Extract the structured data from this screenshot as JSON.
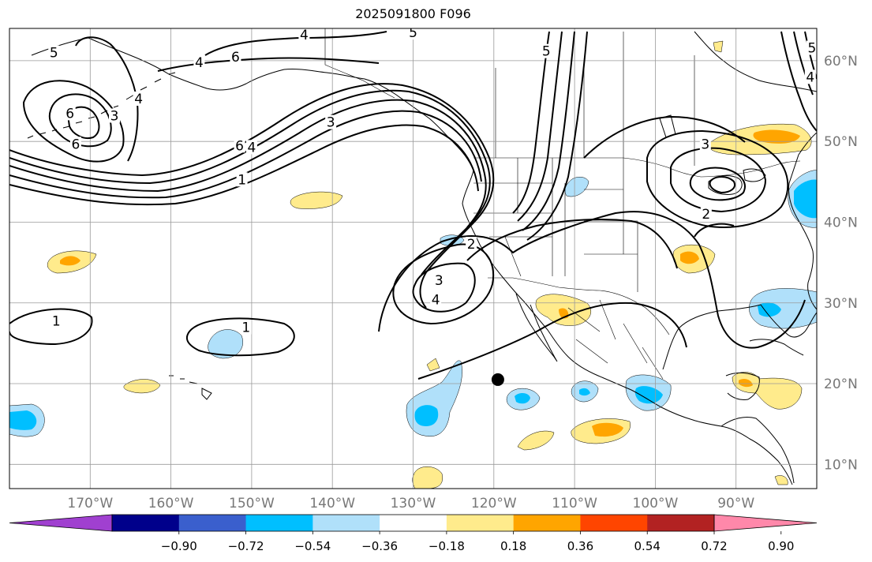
{
  "title": "2025091800 F096",
  "map": {
    "projection": "PlateCarree",
    "lon_range": [
      -180,
      -80
    ],
    "lat_range": [
      7,
      64
    ],
    "lon_ticks": [
      {
        "value": -170,
        "label": "170°W"
      },
      {
        "value": -160,
        "label": "160°W"
      },
      {
        "value": -150,
        "label": "150°W"
      },
      {
        "value": -140,
        "label": "140°W"
      },
      {
        "value": -130,
        "label": "130°W"
      },
      {
        "value": -120,
        "label": "120°W"
      },
      {
        "value": -110,
        "label": "110°W"
      },
      {
        "value": -100,
        "label": "100°W"
      },
      {
        "value": -90,
        "label": "90°W"
      }
    ],
    "lat_ticks": [
      {
        "value": 10,
        "label": "10°N"
      },
      {
        "value": 20,
        "label": "20°N"
      },
      {
        "value": 30,
        "label": "30°N"
      },
      {
        "value": 40,
        "label": "40°N"
      },
      {
        "value": 50,
        "label": "50°N"
      },
      {
        "value": 60,
        "label": "60°N"
      }
    ],
    "grid": true,
    "marker": {
      "lon": -119.5,
      "lat": 20.5,
      "color": "#000000"
    },
    "contour_labels": [
      {
        "text": "5",
        "lon": -174.5,
        "lat": 61.0
      },
      {
        "text": "4",
        "lon": -143.5,
        "lat": 63.2
      },
      {
        "text": "5",
        "lon": -130.0,
        "lat": 63.5
      },
      {
        "text": "6",
        "lon": -152.0,
        "lat": 60.5
      },
      {
        "text": "4",
        "lon": -156.5,
        "lat": 59.8
      },
      {
        "text": "4",
        "lon": -164.0,
        "lat": 55.3
      },
      {
        "text": "3",
        "lon": -167.0,
        "lat": 53.2
      },
      {
        "text": "6",
        "lon": -172.5,
        "lat": 53.5
      },
      {
        "text": "6",
        "lon": -171.8,
        "lat": 49.7
      },
      {
        "text": "6",
        "lon": -151.5,
        "lat": 49.5
      },
      {
        "text": "4",
        "lon": -150.0,
        "lat": 49.3
      },
      {
        "text": "3",
        "lon": -140.2,
        "lat": 52.4
      },
      {
        "text": "1",
        "lon": -151.2,
        "lat": 45.3
      },
      {
        "text": "2",
        "lon": -122.8,
        "lat": 37.3
      },
      {
        "text": "3",
        "lon": -126.8,
        "lat": 32.8
      },
      {
        "text": "4",
        "lon": -127.2,
        "lat": 30.4
      },
      {
        "text": "1",
        "lon": -174.2,
        "lat": 27.8
      },
      {
        "text": "1",
        "lon": -150.7,
        "lat": 27.0
      },
      {
        "text": "5",
        "lon": -113.5,
        "lat": 61.2
      },
      {
        "text": "3",
        "lon": -93.8,
        "lat": 49.7
      },
      {
        "text": "2",
        "lon": -93.7,
        "lat": 41.0
      },
      {
        "text": "5",
        "lon": -80.6,
        "lat": 61.6
      },
      {
        "text": "4",
        "lon": -80.8,
        "lat": 58.0
      }
    ]
  },
  "colorbar": {
    "boundaries": [
      -0.9,
      -0.72,
      -0.54,
      -0.36,
      -0.18,
      0.18,
      0.36,
      0.54,
      0.72,
      0.9
    ],
    "labels": [
      "−0.90",
      "−0.72",
      "−0.54",
      "−0.36",
      "−0.18",
      "0.18",
      "0.36",
      "0.54",
      "0.72",
      "0.90"
    ],
    "colors": [
      "#a040d0",
      "#00008b",
      "#3a5fcd",
      "#00bfff",
      "#b0e0fa",
      "#ffffff",
      "#ffeb8c",
      "#ffa500",
      "#ff4500",
      "#b22222",
      "#ff88aa"
    ],
    "extend": "both"
  }
}
